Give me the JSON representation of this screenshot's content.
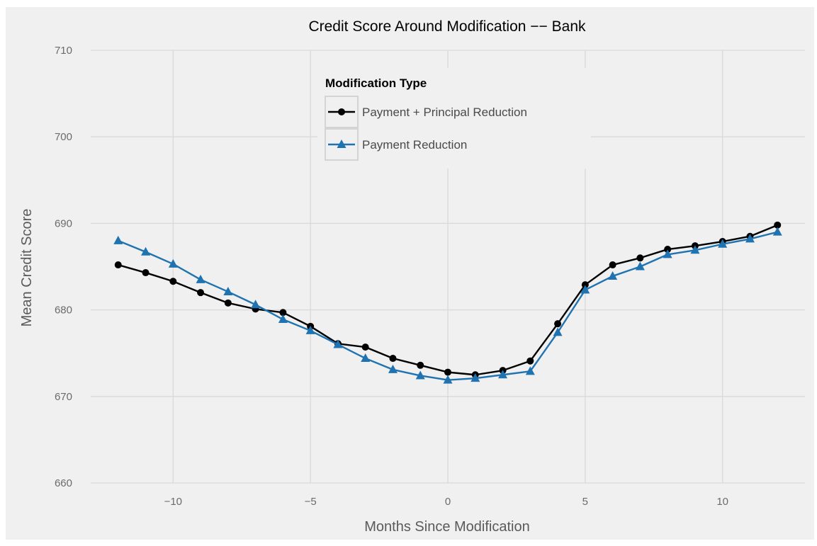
{
  "chart_data": {
    "type": "line",
    "title": "Credit Score Around Modification −− Bank",
    "xlabel": "Months Since Modification",
    "ylabel": "Mean Credit Score",
    "xlim": [
      -13,
      13
    ],
    "ylim": [
      660,
      710
    ],
    "x_ticks": [
      -10,
      -5,
      0,
      5,
      10
    ],
    "x_tick_labels": [
      "−10",
      "−5",
      "0",
      "5",
      "10"
    ],
    "y_ticks": [
      660,
      670,
      680,
      690,
      700,
      710
    ],
    "y_tick_labels": [
      "660",
      "670",
      "680",
      "690",
      "700",
      "710"
    ],
    "grid": true,
    "legend": {
      "title": "Modification Type",
      "placement": "top-center"
    },
    "x": [
      -12,
      -11,
      -10,
      -9,
      -8,
      -7,
      -6,
      -5,
      -4,
      -3,
      -2,
      -1,
      0,
      1,
      2,
      3,
      4,
      5,
      6,
      7,
      8,
      9,
      10,
      11,
      12
    ],
    "series": [
      {
        "name": "Payment + Principal Reduction",
        "color": "#000000",
        "marker": "circle",
        "values": [
          685.2,
          684.3,
          683.3,
          682.0,
          680.8,
          680.1,
          679.7,
          678.1,
          676.1,
          675.7,
          674.4,
          673.6,
          672.8,
          672.5,
          673.0,
          674.1,
          678.4,
          682.9,
          685.2,
          686.0,
          687.0,
          687.4,
          687.9,
          688.5,
          689.8
        ]
      },
      {
        "name": "Payment Reduction",
        "color": "#1f73b0",
        "marker": "triangle",
        "values": [
          688.0,
          686.7,
          685.3,
          683.5,
          682.1,
          680.6,
          678.9,
          677.6,
          676.0,
          674.4,
          673.1,
          672.4,
          671.9,
          672.1,
          672.5,
          672.9,
          677.4,
          682.3,
          683.9,
          685.0,
          686.4,
          686.9,
          687.6,
          688.2,
          689.0
        ]
      }
    ]
  }
}
